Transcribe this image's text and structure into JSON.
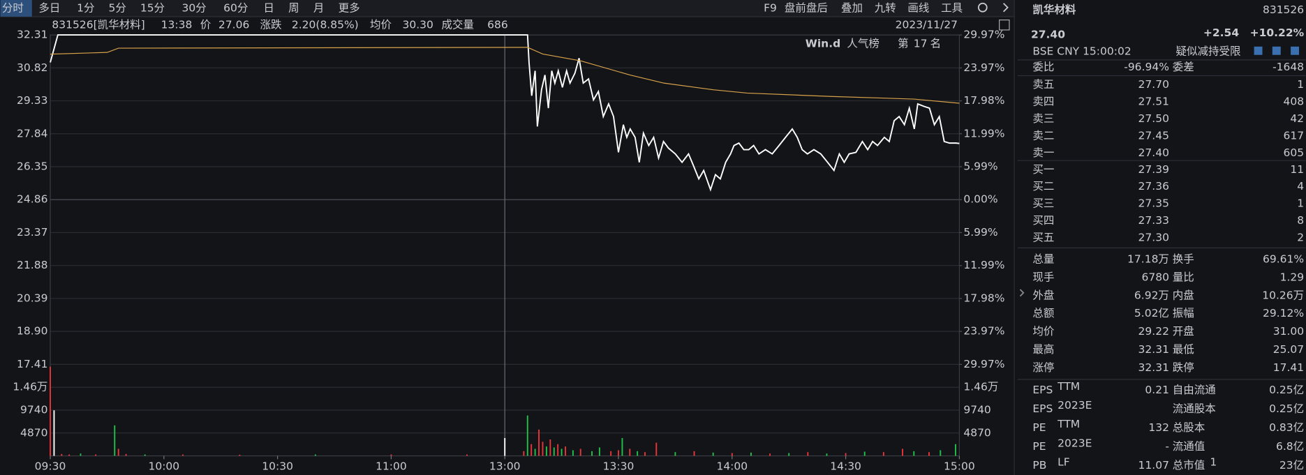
{
  "toolbar": {
    "periods": [
      "分时",
      "多日",
      "1分",
      "5分",
      "15分",
      "30分",
      "60分",
      "日",
      "周",
      "月",
      "更多"
    ],
    "active_period": 0,
    "tools": [
      "F9",
      "盘前盘后",
      "叠加",
      "九转",
      "画线",
      "工具"
    ]
  },
  "info": {
    "code": "831526[凯华材料]",
    "time": "13:38",
    "price": "27.06",
    "change_label": "涨跌",
    "change": "2.20(8.85%)",
    "avg": "30.30",
    "vol_label": "成交量",
    "vol": "686",
    "date": "2023/11/27"
  },
  "badge": {
    "brand": "Win.d",
    "text": "人气榜",
    "rank_prefix": "第",
    "rank": "17",
    "rank_suffix": "名"
  },
  "chart_data": [
    {
      "type": "line",
      "xlim": [
        0,
        240
      ],
      "xticks": [
        {
          "value": 0,
          "label": "09:30"
        },
        {
          "value": 30,
          "label": "10:00"
        },
        {
          "value": 60,
          "label": "10:30"
        },
        {
          "value": 90,
          "label": "11:00"
        },
        {
          "value": 120,
          "label": "13:00"
        },
        {
          "value": 150,
          "label": "13:30"
        },
        {
          "value": 180,
          "label": "14:00"
        },
        {
          "value": 210,
          "label": "14:30"
        },
        {
          "value": 240,
          "label": "15:00"
        }
      ],
      "divider": 120,
      "ylim": [
        17.41,
        32.31
      ],
      "yticks": [
        32.31,
        30.82,
        29.33,
        27.84,
        26.35,
        24.86,
        23.37,
        21.88,
        20.39,
        {
          "value": 18.9,
          "label": "18.90"
        },
        17.41
      ],
      "y2lim": [
        -29.97,
        29.97
      ],
      "y2ticks": [
        {
          "value": 29.97,
          "label": "29.97%"
        },
        {
          "value": 23.97,
          "label": "23.97%"
        },
        {
          "value": 17.98,
          "label": "17.98%"
        },
        {
          "value": 11.99,
          "label": "11.99%"
        },
        {
          "value": 5.99,
          "label": "5.99%"
        },
        {
          "value": 0,
          "label": "0.00%"
        },
        {
          "value": -5.99,
          "label": "5.99%"
        },
        {
          "value": -11.99,
          "label": "11.99%"
        },
        {
          "value": -17.98,
          "label": "17.98%"
        },
        {
          "value": -23.97,
          "label": "23.97%"
        },
        {
          "value": -29.97,
          "label": "29.97%"
        }
      ],
      "grid": true,
      "series": [
        {
          "name": "价",
          "color": "#ffffff",
          "x": [
            0,
            2,
            126,
            126.4,
            127.1,
            128,
            128.6,
            129.7,
            130.6,
            131.5,
            132.4,
            133.2,
            134.1,
            135.2,
            136.3,
            137.2,
            138.5,
            139.6,
            140.7,
            142.1,
            143.4,
            144.7,
            146,
            147.4,
            148.7,
            150,
            151.3,
            152.2,
            153.1,
            154.4,
            155.5,
            156.6,
            158,
            159.3,
            160.6,
            161.9,
            163.2,
            165,
            166.8,
            168.5,
            169.9,
            171.2,
            172.5,
            174.3,
            175.6,
            176.9,
            178.3,
            179.6,
            180.5,
            181.8,
            183.1,
            184.4,
            185.7,
            187.1,
            188.8,
            190.6,
            192.4,
            194.1,
            195.9,
            197.2,
            198.5,
            199.9,
            201.6,
            203.4,
            205.2,
            206.9,
            208.3,
            209.6,
            210.9,
            212.7,
            214.4,
            215.8,
            217.1,
            218.4,
            220.2,
            221.5,
            222.8,
            224.1,
            225.5,
            226.8,
            228.1,
            229,
            230.8,
            232.1,
            233.4,
            234.7,
            236,
            237.4,
            239.1,
            240
          ],
          "values": [
            31.07,
            32.31,
            32.31,
            31.07,
            29.56,
            30.69,
            28.17,
            29.83,
            30.5,
            29,
            30.69,
            30.13,
            30.69,
            29.94,
            30.69,
            30.13,
            30.58,
            31.26,
            30.13,
            30.32,
            29.37,
            29.75,
            28.62,
            29.19,
            28.62,
            27,
            28.25,
            27.68,
            28.06,
            27.68,
            26.55,
            27.87,
            27.31,
            27.68,
            26.74,
            27.49,
            27.19,
            26.93,
            26.55,
            26.93,
            26.36,
            25.8,
            26.18,
            25.31,
            25.99,
            25.8,
            26.55,
            26.93,
            27.31,
            27.42,
            27.12,
            27.12,
            27.31,
            26.93,
            27.12,
            26.93,
            27.31,
            27.68,
            28.06,
            27.68,
            27.12,
            26.93,
            27.12,
            26.93,
            26.55,
            26.18,
            26.93,
            26.55,
            26.93,
            27,
            27.49,
            27.12,
            27.49,
            27.31,
            27.68,
            27.49,
            28.43,
            28.62,
            28.25,
            29,
            28.06,
            29.19,
            29.07,
            29,
            28.25,
            28.62,
            27.49,
            27.42,
            27.42,
            27.4
          ]
        },
        {
          "name": "均价",
          "color": "#d9a24a",
          "x": [
            0,
            15,
            18,
            126,
            130,
            140,
            153,
            162,
            175,
            184,
            206,
            228,
            240
          ],
          "values": [
            31.44,
            31.52,
            31.71,
            31.75,
            31.45,
            31.14,
            30.5,
            30.13,
            29.83,
            29.68,
            29.53,
            29.41,
            29.22
          ]
        }
      ]
    },
    {
      "type": "bar",
      "xlim": [
        0,
        240
      ],
      "ylim": [
        0,
        19480
      ],
      "yticks": [
        4870,
        9740,
        {
          "value": 14600,
          "label": "1.46万"
        }
      ],
      "x": [
        0,
        1,
        3,
        5,
        8,
        12,
        17,
        18,
        20,
        25,
        35,
        50,
        70,
        90,
        110,
        120,
        125,
        126,
        127,
        128,
        129,
        130,
        131,
        132,
        133,
        134,
        135,
        136,
        138,
        140,
        143,
        145,
        148,
        150,
        151,
        153,
        155,
        157,
        160,
        165,
        170,
        175,
        180,
        185,
        190,
        195,
        200,
        205,
        210,
        215,
        220,
        225,
        228,
        232,
        235,
        239
      ],
      "values": [
        19000,
        9700,
        400,
        300,
        500,
        300,
        6500,
        1500,
        400,
        300,
        300,
        250,
        300,
        300,
        300,
        3800,
        1000,
        8600,
        2500,
        1500,
        5600,
        3000,
        2000,
        3500,
        1800,
        2500,
        1500,
        2000,
        1200,
        1500,
        1000,
        1800,
        1000,
        1200,
        3800,
        1500,
        1000,
        800,
        2800,
        800,
        1000,
        700,
        600,
        700,
        500,
        600,
        800,
        500,
        600,
        900,
        800,
        1500,
        1000,
        800,
        1200,
        2500
      ],
      "colors": [
        "#e8353a",
        "#ffffff",
        "#e8353a",
        "#e8353a",
        "#22c04a",
        "#e8353a",
        "#22c04a",
        "#e8353a",
        "#e8353a",
        "#22c04a",
        "#e8353a",
        "#e8353a",
        "#22c04a",
        "#e8353a",
        "#e8353a",
        "#ffffff",
        "#e8353a",
        "#22c04a",
        "#e8353a",
        "#22c04a",
        "#e8353a",
        "#e8353a",
        "#22c04a",
        "#e8353a",
        "#22c04a",
        "#e8353a",
        "#22c04a",
        "#e8353a",
        "#22c04a",
        "#e8353a",
        "#22c04a",
        "#22c04a",
        "#e8353a",
        "#e8353a",
        "#22c04a",
        "#e8353a",
        "#22c04a",
        "#e8353a",
        "#e8353a",
        "#22c04a",
        "#e8353a",
        "#22c04a",
        "#e8353a",
        "#22c04a",
        "#e8353a",
        "#22c04a",
        "#e8353a",
        "#22c04a",
        "#e8353a",
        "#22c04a",
        "#e8353a",
        "#e8353a",
        "#22c04a",
        "#e8353a",
        "#22c04a",
        "#22c04a"
      ]
    }
  ],
  "quote": {
    "name": "凯华材料",
    "code": "831526",
    "price": "27.40",
    "change": "+2.54",
    "pct": "+10.22%",
    "meta": "BSE  CNY  15:00:02",
    "notice": "疑似减持受限",
    "committee": {
      "label": "委比",
      "value": "-96.94%",
      "label2": "委差",
      "value2": "-1648",
      "tone": "green",
      "tone2": "green"
    },
    "asks": [
      {
        "label": "卖五",
        "price": "27.70",
        "qty": "1"
      },
      {
        "label": "卖四",
        "price": "27.51",
        "qty": "408"
      },
      {
        "label": "卖三",
        "price": "27.50",
        "qty": "42"
      },
      {
        "label": "卖二",
        "price": "27.45",
        "qty": "617"
      },
      {
        "label": "卖一",
        "price": "27.40",
        "qty": "605"
      }
    ],
    "bids": [
      {
        "label": "买一",
        "price": "27.39",
        "qty": "11"
      },
      {
        "label": "买二",
        "price": "27.36",
        "qty": "4"
      },
      {
        "label": "买三",
        "price": "27.35",
        "qty": "1"
      },
      {
        "label": "买四",
        "price": "27.33",
        "qty": "8"
      },
      {
        "label": "买五",
        "price": "27.30",
        "qty": "2"
      }
    ],
    "stats": [
      {
        "label": "总量",
        "value": "17.18万",
        "label2": "换手",
        "value2": "69.61%"
      },
      {
        "label": "现手",
        "value": "6780",
        "label2": "量比",
        "value2": "1.29"
      },
      {
        "label": "外盘",
        "value": "6.92万",
        "label2": "内盘",
        "value2": "10.26万",
        "tone": "red",
        "tone2": "green"
      },
      {
        "label": "总额",
        "value": "5.02亿",
        "label2": "振幅",
        "value2": "29.12%"
      },
      {
        "label": "均价",
        "value": "29.22",
        "label2": "开盘",
        "value2": "31.00",
        "tone": "red",
        "tone2": "red"
      },
      {
        "label": "最高",
        "value": "32.31",
        "label2": "最低",
        "value2": "25.07",
        "tone": "red",
        "tone2": "red"
      },
      {
        "label": "涨停",
        "value": "32.31",
        "label2": "跌停",
        "value2": "17.41",
        "tone": "red",
        "tone2": "green"
      }
    ],
    "fundamentals": [
      {
        "label": "EPS",
        "sup": "TTM",
        "value": "0.21",
        "label2": "自由流通",
        "value2": "0.25亿"
      },
      {
        "label": "EPS",
        "sup": "2023E",
        "label2": "流通股本",
        "value2": "0.25亿"
      },
      {
        "label": "PE",
        "sup": "TTM",
        "value": "132",
        "label2": "总股本",
        "value2": "0.83亿"
      },
      {
        "label": "PE",
        "sup": "2023E",
        "value": "-",
        "label2": "流通值",
        "value2": "6.8亿"
      },
      {
        "label": "PB",
        "sup": "LF",
        "value": "11.07",
        "label2": "总市值",
        "sup2": "1",
        "value2": "23亿"
      }
    ]
  }
}
